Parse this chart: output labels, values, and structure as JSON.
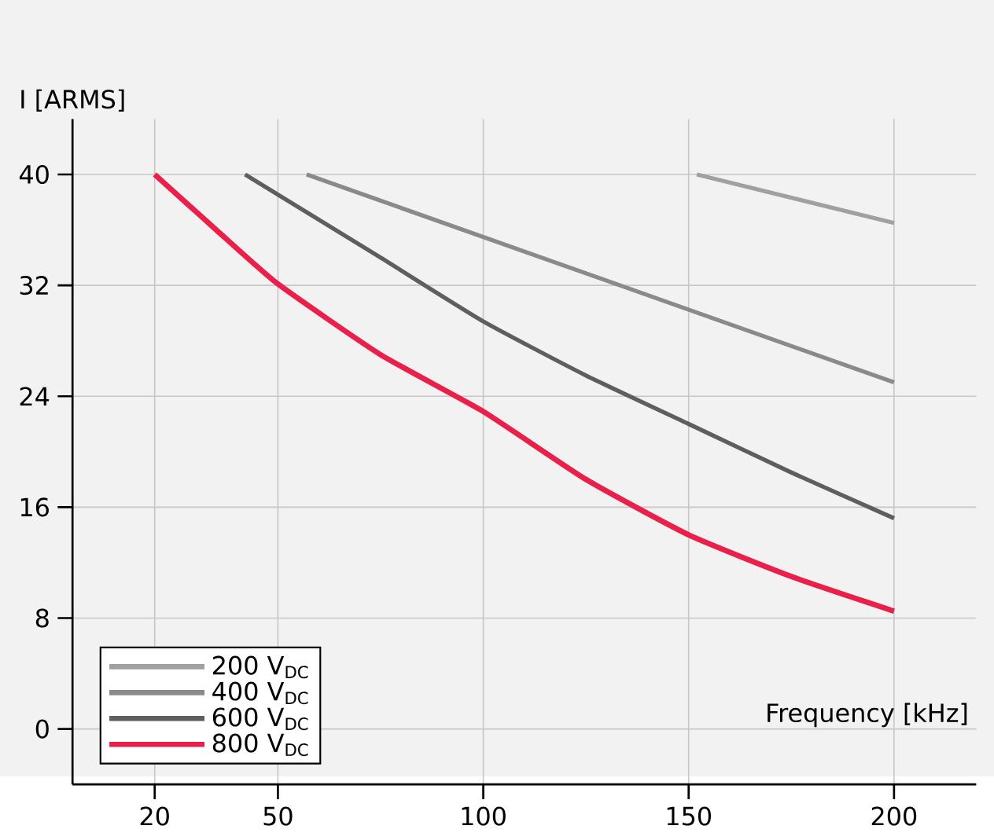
{
  "chart_data": {
    "type": "line",
    "xlabel": "Frequency [kHz]",
    "ylabel": "I [ARMS]",
    "xlim": [
      0,
      220
    ],
    "ylim": [
      -4,
      44
    ],
    "xticks": [
      20,
      50,
      100,
      150,
      200
    ],
    "yticks": [
      0,
      8,
      16,
      24,
      32,
      40
    ],
    "grid": true,
    "legend": "bottom left",
    "marker": "none",
    "line_style": "solid",
    "series": [
      {
        "name": "200 V$_{DC}$",
        "color": "#a0a0a3",
        "x": [
          152,
          200
        ],
        "values": [
          40,
          36.5
        ]
      },
      {
        "name": "400 V$_{DC}$",
        "color": "#8a8a8c",
        "x": [
          57,
          200
        ],
        "values": [
          40,
          25.0
        ]
      },
      {
        "name": "600 V$_{DC}$",
        "color": "#5e5e60",
        "x": [
          42,
          75,
          100,
          125,
          150,
          175,
          200
        ],
        "values": [
          40,
          34,
          29.4,
          25.5,
          22,
          18.5,
          15.2
        ]
      },
      {
        "name": "800 V$_{DC}$",
        "color": "#e8204a",
        "x": [
          20,
          35,
          50,
          75,
          100,
          125,
          150,
          175,
          200
        ],
        "values": [
          40,
          36,
          32.1,
          27,
          22.9,
          18,
          14.0,
          11,
          8.5
        ]
      }
    ]
  }
}
